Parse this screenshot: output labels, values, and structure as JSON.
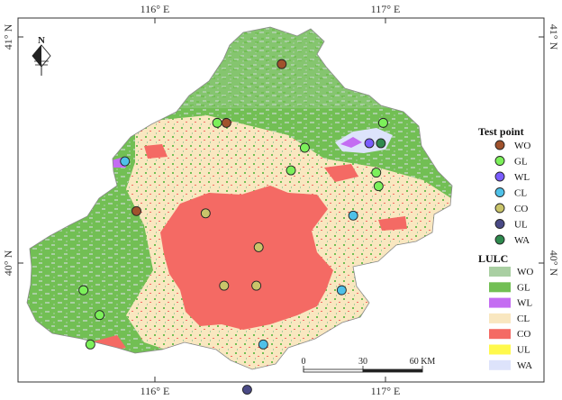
{
  "graticule": {
    "top": [
      "116° E",
      "117° E"
    ],
    "bottom": [
      "116° E",
      "117° E"
    ],
    "left": [
      "41° N",
      "40° N"
    ],
    "right": [
      "41° N",
      "40° N"
    ]
  },
  "north_arrow": {
    "label": "N"
  },
  "legend": {
    "test_point_title": "Test point",
    "test_points": [
      {
        "code": "WO",
        "color": "#a0522d"
      },
      {
        "code": "GL",
        "color": "#7cf05a"
      },
      {
        "code": "WL",
        "color": "#7a5cff"
      },
      {
        "code": "CL",
        "color": "#4fc1e8"
      },
      {
        "code": "CO",
        "color": "#c9c46a"
      },
      {
        "code": "UL",
        "color": "#4a4a86"
      },
      {
        "code": "WA",
        "color": "#2f8a4e"
      }
    ],
    "lulc_title": "LULC",
    "lulc": [
      {
        "code": "WO",
        "color": "#a9cfa2"
      },
      {
        "code": "GL",
        "color": "#72bf54"
      },
      {
        "code": "WL",
        "color": "#c46cf2"
      },
      {
        "code": "CL",
        "color": "#f9e7c0"
      },
      {
        "code": "CO",
        "color": "#f46a64"
      },
      {
        "code": "UL",
        "color": "#fff94c"
      },
      {
        "code": "WA",
        "color": "#dde3fb"
      }
    ]
  },
  "scale_bar": {
    "labels": [
      "0",
      "30",
      "60 KM"
    ]
  },
  "test_points": [
    {
      "cls": "WO",
      "lon": 116.55,
      "lat": 40.88
    },
    {
      "cls": "WO",
      "lon": 116.31,
      "lat": 40.62
    },
    {
      "cls": "GL",
      "lon": 116.27,
      "lat": 40.62
    },
    {
      "cls": "WO",
      "lon": 115.92,
      "lat": 40.23
    },
    {
      "cls": "CL",
      "lon": 115.87,
      "lat": 40.45
    },
    {
      "cls": "GL",
      "lon": 116.65,
      "lat": 40.51
    },
    {
      "cls": "GL",
      "lon": 116.99,
      "lat": 40.62
    },
    {
      "cls": "WL",
      "lon": 116.93,
      "lat": 40.53
    },
    {
      "cls": "WA",
      "lon": 116.98,
      "lat": 40.53
    },
    {
      "cls": "GL",
      "lon": 116.59,
      "lat": 40.41
    },
    {
      "cls": "GL",
      "lon": 116.96,
      "lat": 40.4
    },
    {
      "cls": "GL",
      "lon": 116.97,
      "lat": 40.34
    },
    {
      "cls": "CO",
      "lon": 116.22,
      "lat": 40.22
    },
    {
      "cls": "CL",
      "lon": 116.86,
      "lat": 40.21
    },
    {
      "cls": "CO",
      "lon": 116.45,
      "lat": 40.07
    },
    {
      "cls": "GL",
      "lon": 115.69,
      "lat": 39.88
    },
    {
      "cls": "CO",
      "lon": 116.3,
      "lat": 39.9
    },
    {
      "cls": "CO",
      "lon": 116.44,
      "lat": 39.9
    },
    {
      "cls": "CL",
      "lon": 116.81,
      "lat": 39.88
    },
    {
      "cls": "GL",
      "lon": 115.76,
      "lat": 39.77
    },
    {
      "cls": "GL",
      "lon": 115.72,
      "lat": 39.64
    },
    {
      "cls": "CL",
      "lon": 116.47,
      "lat": 39.64
    },
    {
      "cls": "UL",
      "lon": 116.4,
      "lat": 39.44
    }
  ]
}
